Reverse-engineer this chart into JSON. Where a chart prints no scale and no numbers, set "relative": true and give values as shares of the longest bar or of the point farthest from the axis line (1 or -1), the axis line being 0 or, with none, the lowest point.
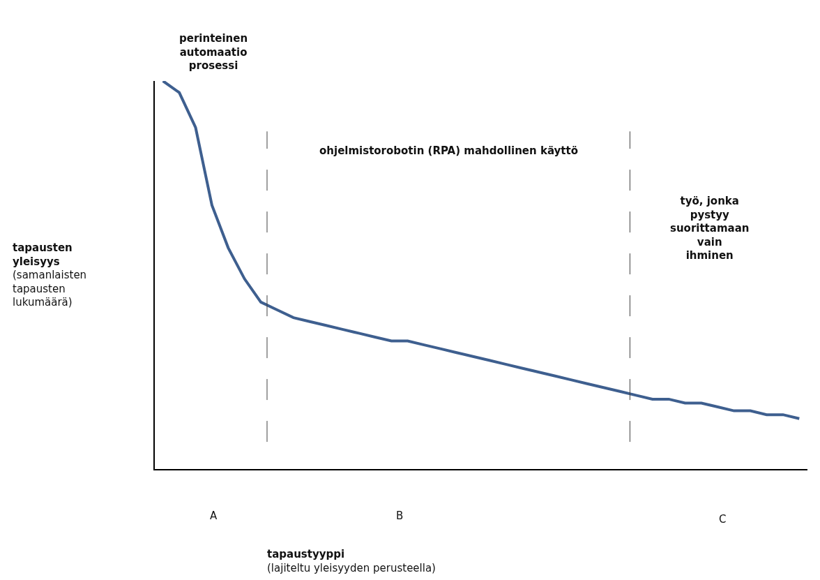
{
  "chart_data": {
    "type": "line",
    "relative": true,
    "categories": [
      null,
      null,
      null,
      null,
      null,
      null,
      null,
      null,
      null,
      null,
      null,
      null,
      null,
      null,
      null,
      null,
      null,
      null,
      null,
      null,
      null,
      null,
      null,
      null,
      null,
      null,
      null,
      null,
      null,
      null,
      null,
      null,
      null,
      null,
      null,
      null,
      null,
      null,
      null,
      null
    ],
    "series": [
      {
        "color": "#3e5f8f",
        "values": [
          1.0,
          0.97,
          0.88,
          0.68,
          0.57,
          0.49,
          0.43,
          0.41,
          0.39,
          0.38,
          0.37,
          0.36,
          0.35,
          0.34,
          0.33,
          0.33,
          0.32,
          0.31,
          0.3,
          0.29,
          0.28,
          0.27,
          0.26,
          0.25,
          0.24,
          0.23,
          0.22,
          0.21,
          0.2,
          0.19,
          0.18,
          0.18,
          0.17,
          0.17,
          0.16,
          0.15,
          0.15,
          0.14,
          0.14,
          0.13
        ]
      }
    ],
    "annotations": [
      "perinteinen automaatio prosessi",
      "ohjelmistorobotin (RPA) mahdollinen käyttö",
      "työ, jonka pystyy suorittamaan vain ihminen",
      "A",
      "B",
      "C",
      "tapausten yleisyys (samanlaisten tapausten lukumäärä)",
      "tapaustyyppi (lajiteltu yleisyyden perusteella)"
    ],
    "legend": false,
    "tick_labels": false,
    "line_style": "solid",
    "marker": "none"
  }
}
